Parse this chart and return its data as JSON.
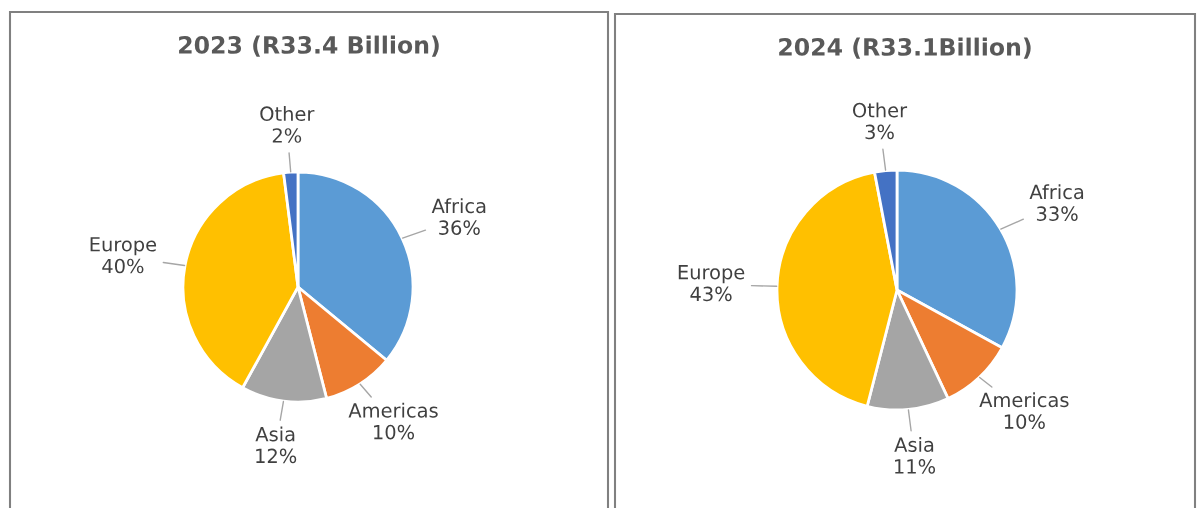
{
  "chart_data": [
    {
      "type": "pie",
      "title": "2023 (R33.4 Billion)",
      "categories": [
        "Africa",
        "Americas",
        "Asia",
        "Europe",
        "Other"
      ],
      "values": [
        36,
        10,
        12,
        40,
        2
      ],
      "value_labels": [
        "36%",
        "10%",
        "12%",
        "40%",
        "2%"
      ],
      "colors": [
        "#5b9bd5",
        "#ed7d31",
        "#a5a5a5",
        "#ffc000",
        "#4472c4"
      ]
    },
    {
      "type": "pie",
      "title": "2024 (R33.1Billion)",
      "categories": [
        "Africa",
        "Americas",
        "Asia",
        "Europe",
        "Other"
      ],
      "values": [
        33,
        10,
        11,
        43,
        3
      ],
      "value_labels": [
        "33%",
        "10%",
        "11%",
        "43%",
        "3%"
      ],
      "colors": [
        "#5b9bd5",
        "#ed7d31",
        "#a5a5a5",
        "#ffc000",
        "#4472c4"
      ]
    }
  ]
}
